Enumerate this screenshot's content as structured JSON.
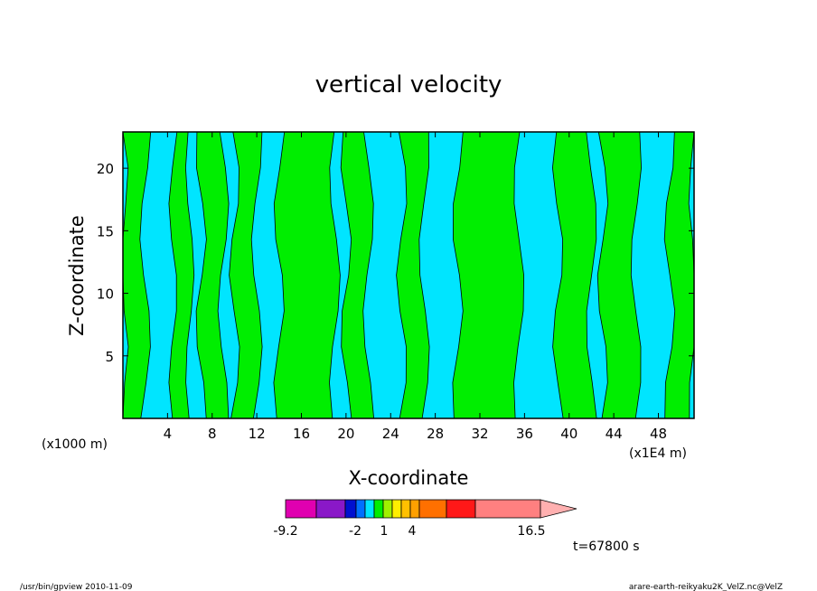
{
  "chart_data": {
    "type": "heatmap",
    "title": "vertical velocity",
    "xlabel": "X-coordinate",
    "ylabel": "Z-coordinate",
    "x_unit_left": "(x1000 m)",
    "x_unit_right": "(x1E4 m)",
    "xlim": [
      0,
      51.2
    ],
    "ylim": [
      0,
      22.9
    ],
    "x_ticks": [
      4,
      8,
      12,
      16,
      20,
      24,
      28,
      32,
      36,
      40,
      44,
      48
    ],
    "y_ticks": [
      5,
      10,
      15,
      20
    ],
    "field_levels": [
      "negative (cyan)",
      "positive (green)"
    ],
    "colors": {
      "negative": "#00e5ff",
      "positive": "#00ee00",
      "contour": "#000000"
    },
    "bands": [
      {
        "x0": 0.0,
        "x1": 2.0,
        "level": "positive"
      },
      {
        "x0": 2.0,
        "x1": 4.5,
        "level": "negative"
      },
      {
        "x0": 4.5,
        "x1": 6.0,
        "level": "positive"
      },
      {
        "x0": 6.0,
        "x1": 7.0,
        "level": "negative"
      },
      {
        "x0": 7.0,
        "x1": 9.0,
        "level": "positive"
      },
      {
        "x0": 9.0,
        "x1": 10.0,
        "level": "negative"
      },
      {
        "x0": 10.0,
        "x1": 12.0,
        "level": "positive"
      },
      {
        "x0": 12.0,
        "x1": 14.0,
        "level": "negative"
      },
      {
        "x0": 14.0,
        "x1": 19.0,
        "level": "positive"
      },
      {
        "x0": 19.0,
        "x1": 20.0,
        "level": "negative"
      },
      {
        "x0": 20.0,
        "x1": 22.0,
        "level": "positive"
      },
      {
        "x0": 22.0,
        "x1": 25.0,
        "level": "negative"
      },
      {
        "x0": 25.0,
        "x1": 27.0,
        "level": "positive"
      },
      {
        "x0": 27.0,
        "x1": 30.0,
        "level": "negative"
      },
      {
        "x0": 30.0,
        "x1": 35.5,
        "level": "positive"
      },
      {
        "x0": 35.5,
        "x1": 39.0,
        "level": "negative"
      },
      {
        "x0": 39.0,
        "x1": 42.0,
        "level": "positive"
      },
      {
        "x0": 42.0,
        "x1": 43.0,
        "level": "negative"
      },
      {
        "x0": 43.0,
        "x1": 46.0,
        "level": "positive"
      },
      {
        "x0": 46.0,
        "x1": 49.0,
        "level": "negative"
      },
      {
        "x0": 49.0,
        "x1": 51.2,
        "level": "positive"
      }
    ],
    "colorbar": {
      "colors": [
        "#e000b0",
        "#8a18c8",
        "#0010d0",
        "#0070ff",
        "#00e5ff",
        "#00ee00",
        "#a0f000",
        "#ffee00",
        "#ffc000",
        "#ffa000",
        "#ff7000",
        "#ff1818",
        "#ff8080"
      ],
      "labels": [
        "-9.2",
        "-2",
        "1",
        "4",
        "16.5"
      ],
      "arrow_color": "#ffb0b0"
    },
    "time_label": "t=67800 s"
  },
  "footer": {
    "left": "/usr/bin/gpview   2010-11-09",
    "right": "arare-earth-reikyaku2K_VelZ.nc@VelZ"
  }
}
